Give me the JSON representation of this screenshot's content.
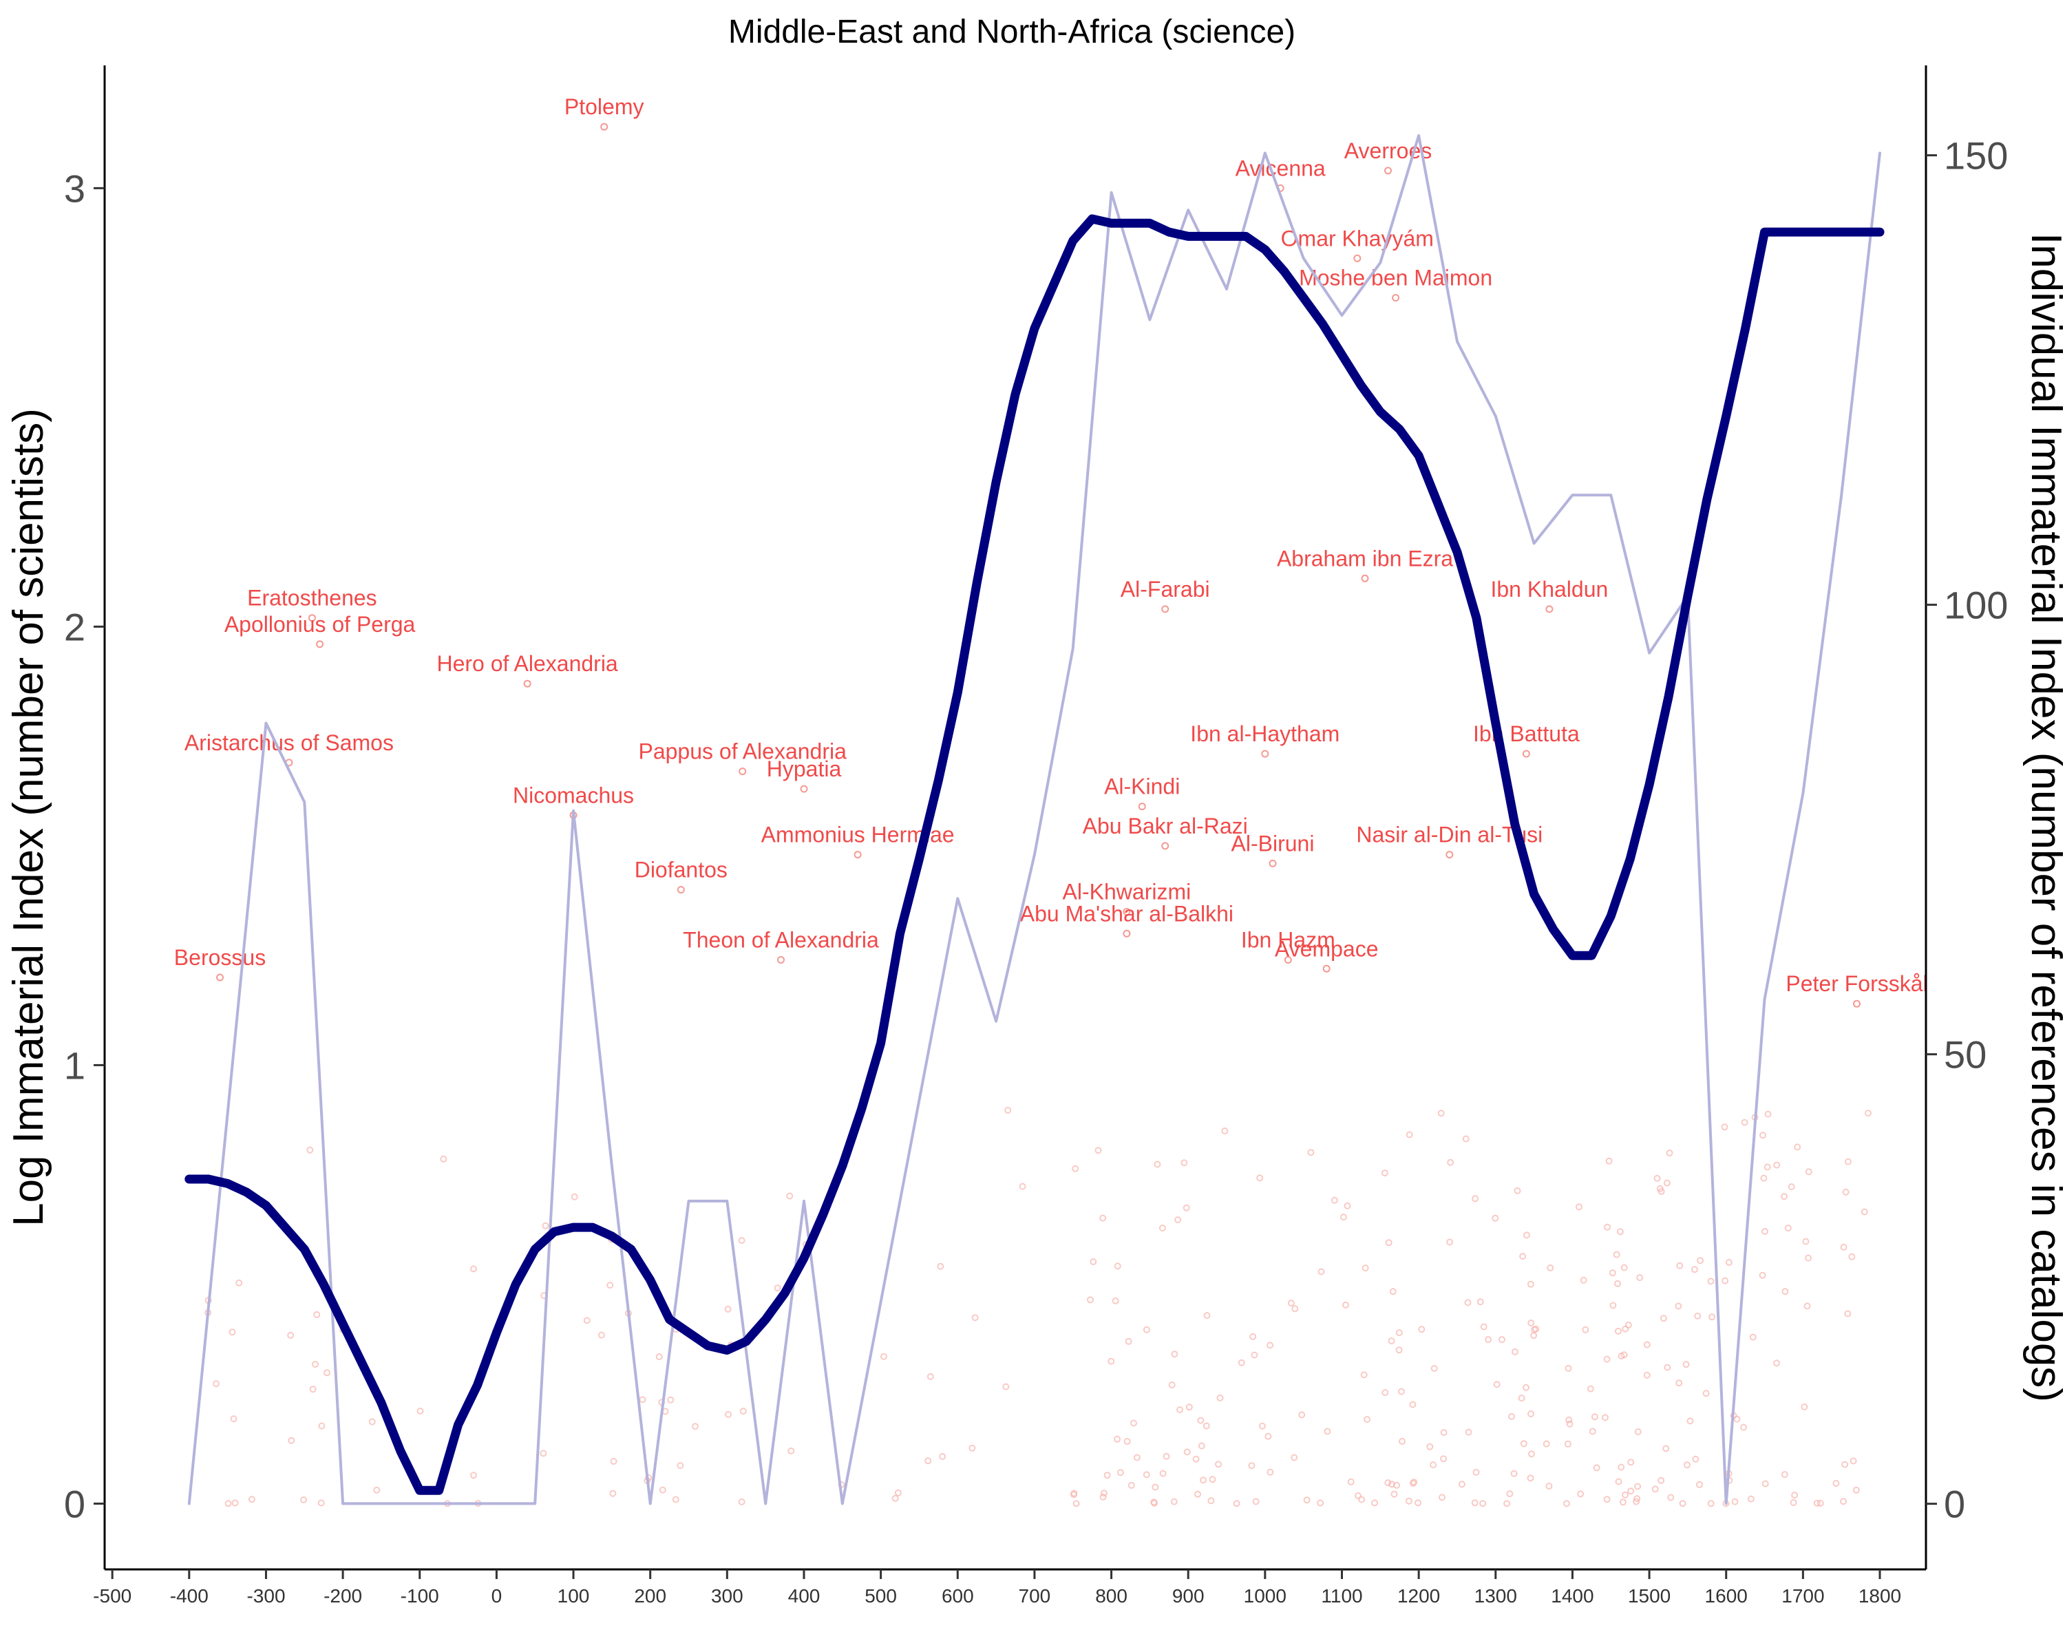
{
  "chart_data": {
    "type": "line",
    "title": "Middle-East and North-Africa (science)",
    "ylabel_left": "Log Immaterial Index (number of scientists)",
    "ylabel_right": "Individual Immaterial Index (number of references in catalogs)",
    "xlim": [
      -510,
      1860
    ],
    "ylim_left": [
      -0.15,
      3.28
    ],
    "ylim_right": [
      -7.3,
      160
    ],
    "x_ticks": [
      -500,
      -400,
      -300,
      -200,
      -100,
      0,
      100,
      200,
      300,
      400,
      500,
      600,
      700,
      800,
      900,
      1000,
      1100,
      1200,
      1300,
      1400,
      1500,
      1600,
      1700,
      1800
    ],
    "x_tick_labels": [
      "-500",
      "-400",
      "-300",
      "-200",
      "-100",
      "0",
      "100",
      "200",
      "300",
      "400",
      "500",
      "600",
      "700",
      "800",
      "900",
      "1000",
      "1100",
      "1200",
      "1300",
      "1400",
      "1500",
      "1600",
      "1700",
      "1800"
    ],
    "y_left_ticks": [
      0,
      1,
      2,
      3
    ],
    "y_left_tick_labels": [
      "0",
      "1",
      "2",
      "3"
    ],
    "y_right_ticks": [
      0,
      50,
      100,
      150
    ],
    "y_right_tick_labels": [
      "0",
      "50",
      "100",
      "150"
    ],
    "series": [
      {
        "role": "raw",
        "color": "#b3b3dc",
        "x": [
          -400,
          -300,
          -250,
          -200,
          -150,
          -100,
          -50,
          0,
          50,
          100,
          150,
          200,
          250,
          300,
          350,
          400,
          450,
          500,
          550,
          600,
          650,
          700,
          750,
          800,
          850,
          900,
          950,
          1000,
          1050,
          1100,
          1150,
          1200,
          1250,
          1300,
          1350,
          1400,
          1450,
          1500,
          1550,
          1600,
          1650,
          1700,
          1750,
          1800
        ],
        "values": [
          0,
          1.78,
          1.6,
          0,
          0,
          0,
          0,
          0,
          0,
          1.58,
          0.77,
          0,
          0.69,
          0.69,
          0,
          0.69,
          0,
          0.46,
          0.92,
          1.38,
          1.1,
          1.48,
          1.95,
          2.99,
          2.7,
          2.95,
          2.77,
          3.08,
          2.84,
          2.71,
          2.83,
          3.12,
          2.65,
          2.48,
          2.19,
          2.3,
          2.3,
          1.94,
          2.07,
          0,
          1.15,
          1.62,
          2.3,
          3.08
        ]
      },
      {
        "role": "smoothed",
        "color": "#00007f",
        "x": [
          -400,
          -375,
          -350,
          -325,
          -300,
          -275,
          -250,
          -225,
          -200,
          -175,
          -150,
          -125,
          -100,
          -75,
          -50,
          -25,
          0,
          25,
          50,
          75,
          100,
          125,
          150,
          175,
          200,
          225,
          250,
          275,
          300,
          325,
          350,
          375,
          400,
          425,
          450,
          475,
          500,
          525,
          550,
          575,
          600,
          625,
          650,
          675,
          700,
          725,
          750,
          775,
          800,
          825,
          850,
          875,
          900,
          925,
          950,
          975,
          1000,
          1025,
          1050,
          1075,
          1100,
          1125,
          1150,
          1175,
          1200,
          1225,
          1250,
          1275,
          1300,
          1325,
          1350,
          1375,
          1400,
          1425,
          1450,
          1475,
          1500,
          1525,
          1550,
          1575,
          1600,
          1625,
          1650,
          1675,
          1700,
          1725,
          1750,
          1775,
          1800
        ],
        "values": [
          0.74,
          0.74,
          0.73,
          0.71,
          0.68,
          0.63,
          0.58,
          0.5,
          0.41,
          0.32,
          0.23,
          0.12,
          0.03,
          0.03,
          0.18,
          0.27,
          0.39,
          0.5,
          0.58,
          0.62,
          0.63,
          0.63,
          0.61,
          0.58,
          0.51,
          0.42,
          0.39,
          0.36,
          0.35,
          0.37,
          0.42,
          0.48,
          0.56,
          0.66,
          0.77,
          0.9,
          1.05,
          1.3,
          1.47,
          1.65,
          1.85,
          2.1,
          2.33,
          2.53,
          2.68,
          2.78,
          2.88,
          2.93,
          2.92,
          2.92,
          2.92,
          2.9,
          2.89,
          2.89,
          2.89,
          2.89,
          2.86,
          2.81,
          2.75,
          2.69,
          2.62,
          2.55,
          2.49,
          2.45,
          2.39,
          2.28,
          2.17,
          2.02,
          1.78,
          1.55,
          1.39,
          1.31,
          1.25,
          1.25,
          1.34,
          1.47,
          1.64,
          1.84,
          2.07,
          2.29,
          2.48,
          2.68,
          2.9,
          2.9,
          2.9,
          2.9,
          2.9,
          2.9,
          2.9
        ]
      }
    ],
    "labels": [
      {
        "text": "Ptolemy",
        "x": 140,
        "y": 3.14
      },
      {
        "text": "Avicenna",
        "x": 1020,
        "y": 3.0
      },
      {
        "text": "Averroes",
        "x": 1160,
        "y": 3.04
      },
      {
        "text": "Omar Khayyám",
        "x": 1120,
        "y": 2.84
      },
      {
        "text": "Moshe ben Maimon",
        "x": 1170,
        "y": 2.75
      },
      {
        "text": "Abraham ibn Ezra",
        "x": 1130,
        "y": 2.11
      },
      {
        "text": "Eratosthenes",
        "x": -240,
        "y": 2.02
      },
      {
        "text": "Al-Farabi",
        "x": 870,
        "y": 2.04
      },
      {
        "text": "Ibn Khaldun",
        "x": 1370,
        "y": 2.04
      },
      {
        "text": "Apollonius of Perga",
        "x": -230,
        "y": 1.96
      },
      {
        "text": "Hero of Alexandria",
        "x": 40,
        "y": 1.87
      },
      {
        "text": "Aristarchus of Samos",
        "x": -270,
        "y": 1.69
      },
      {
        "text": "Ibn al-Haytham",
        "x": 1000,
        "y": 1.71
      },
      {
        "text": "Ibn Battuta",
        "x": 1340,
        "y": 1.71
      },
      {
        "text": "Pappus of Alexandria",
        "x": 320,
        "y": 1.67
      },
      {
        "text": "Nicomachus",
        "x": 100,
        "y": 1.57
      },
      {
        "text": "Al-Kindi",
        "x": 840,
        "y": 1.59
      },
      {
        "text": "Hypatia",
        "x": 400,
        "y": 1.63
      },
      {
        "text": "Abu Bakr al-Razi",
        "x": 870,
        "y": 1.5
      },
      {
        "text": "Nasir al-Din al-Tusi",
        "x": 1240,
        "y": 1.48
      },
      {
        "text": "Ammonius Hermiae",
        "x": 470,
        "y": 1.48
      },
      {
        "text": "Al-Biruni",
        "x": 1010,
        "y": 1.46
      },
      {
        "text": "Al-Khwarizmi",
        "x": 820,
        "y": 1.35
      },
      {
        "text": "Diofantos",
        "x": 240,
        "y": 1.4
      },
      {
        "text": "Theon of Alexandria",
        "x": 370,
        "y": 1.24
      },
      {
        "text": "Abu Ma'shar al-Balkhi",
        "x": 820,
        "y": 1.3
      },
      {
        "text": "Ibn Hazm",
        "x": 1030,
        "y": 1.24
      },
      {
        "text": "Avempace",
        "x": 1080,
        "y": 1.22
      },
      {
        "text": "Berossus",
        "x": -360,
        "y": 1.2
      },
      {
        "text": "Peter Forsskål",
        "x": 1770,
        "y": 1.14
      }
    ]
  }
}
